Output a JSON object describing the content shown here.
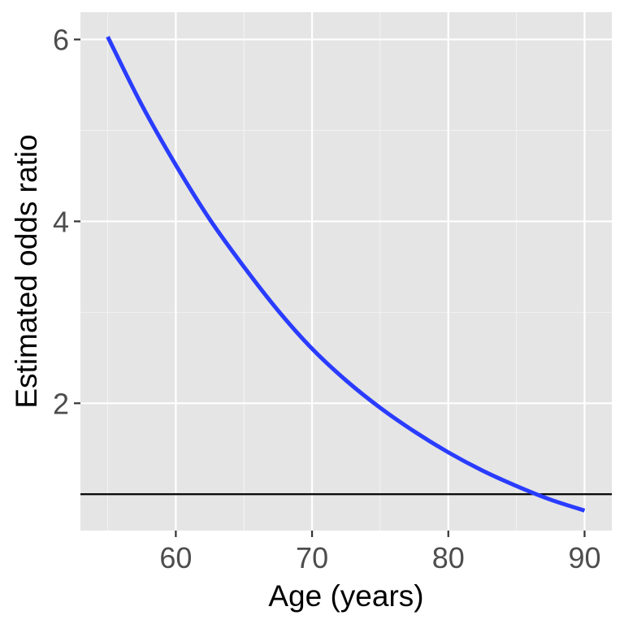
{
  "chart_data": {
    "type": "line",
    "title": "",
    "xlabel": "Age (years)",
    "ylabel": "Estimated odds ratio",
    "xlim": [
      53,
      92
    ],
    "ylim": [
      0.6,
      6.3
    ],
    "x_ticks": [
      60,
      70,
      80,
      90
    ],
    "x_tick_labels": [
      "60",
      "70",
      "80",
      "90"
    ],
    "x_minor_ticks": [
      55,
      65,
      75,
      85
    ],
    "y_ticks": [
      2,
      4,
      6
    ],
    "y_tick_labels": [
      "2",
      "4",
      "6"
    ],
    "y_minor_ticks": [
      1,
      3,
      5
    ],
    "grid": true,
    "legend": "none",
    "series": [
      {
        "color": "#2a3cff",
        "x": [
          55,
          57.5,
          60,
          62.5,
          65,
          67.5,
          70,
          72.5,
          75,
          77.5,
          80,
          82.5,
          85,
          87.5,
          90
        ],
        "y": [
          6.03,
          5.28,
          4.62,
          4.02,
          3.5,
          3.02,
          2.6,
          2.25,
          1.95,
          1.69,
          1.46,
          1.26,
          1.09,
          0.94,
          0.82
        ]
      }
    ],
    "reference_lines": [
      {
        "orientation": "horizontal",
        "y": 1,
        "color": "#000000"
      }
    ],
    "colors": {
      "panel_background": "#e5e5e5",
      "grid_major": "#ffffff",
      "grid_minor": "#f2f2f2",
      "tick_text": "#4d4d4d",
      "axis_title": "#000000"
    }
  }
}
